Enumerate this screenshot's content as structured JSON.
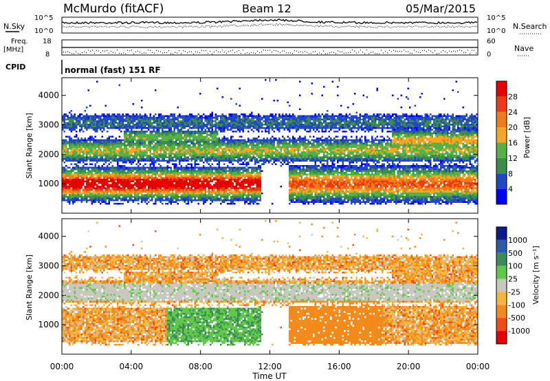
{
  "header": {
    "station": "McMurdo (fitACF)",
    "beam": "Beam 12",
    "date": "05/Mar/2015"
  },
  "top_panel": {
    "nsky_label": "N.Sky",
    "nsearch_label": "N.Search",
    "nsky_ticks": [
      "10^5",
      "10^0"
    ],
    "nsearch_ticks": [
      "10^5",
      "10^0"
    ],
    "freq_label_1": "Freq.",
    "freq_label_2": "[MHz]",
    "freq_ticks": [
      "18",
      "8"
    ],
    "nave_label": "Nave",
    "nave_ticks": [
      "60",
      "0"
    ],
    "cpid_label": "CPID",
    "cpid_text": "normal (fast) 151 RF"
  },
  "colors": {
    "power_scale": [
      "#0000ff",
      "#2146c8",
      "#3c8c4a",
      "#56b048",
      "#f5a623",
      "#f07c18",
      "#ee3a12",
      "#e60000"
    ],
    "velocity_scale": [
      "#e60000",
      "#f24a14",
      "#f38a1c",
      "#f5b640",
      "#c8c8c0",
      "#62c84a",
      "#3a8c5a",
      "#2c5aa8",
      "#0a1a8c"
    ]
  },
  "chart_data": [
    {
      "type": "heatmap",
      "name": "power",
      "ylabel": "Slant Range [km]",
      "yticks": [
        "1000",
        "2000",
        "3000",
        "4000"
      ],
      "ylim": [
        0,
        4600
      ],
      "xlim": [
        "00:00",
        "24:00"
      ],
      "colorbar_label": "Power [dB]",
      "colorbar_ticks": [
        "4",
        "8",
        "12",
        "16",
        "20",
        "24",
        "28"
      ]
    },
    {
      "type": "heatmap",
      "name": "velocity",
      "ylabel": "Slant Range [km]",
      "yticks": [
        "1000",
        "2000",
        "3000",
        "4000"
      ],
      "ylim": [
        0,
        4600
      ],
      "xlim": [
        "00:00",
        "24:00"
      ],
      "colorbar_label": "Velocity [m s⁻¹]",
      "colorbar_ticks": [
        "1000",
        "500",
        "100",
        "25",
        "-25",
        "-100",
        "-500",
        "-1000"
      ]
    }
  ],
  "xaxis": {
    "ticks": [
      "00:00",
      "04:00",
      "08:00",
      "12:00",
      "16:00",
      "20:00",
      "00:00"
    ],
    "label": "Time UT"
  }
}
